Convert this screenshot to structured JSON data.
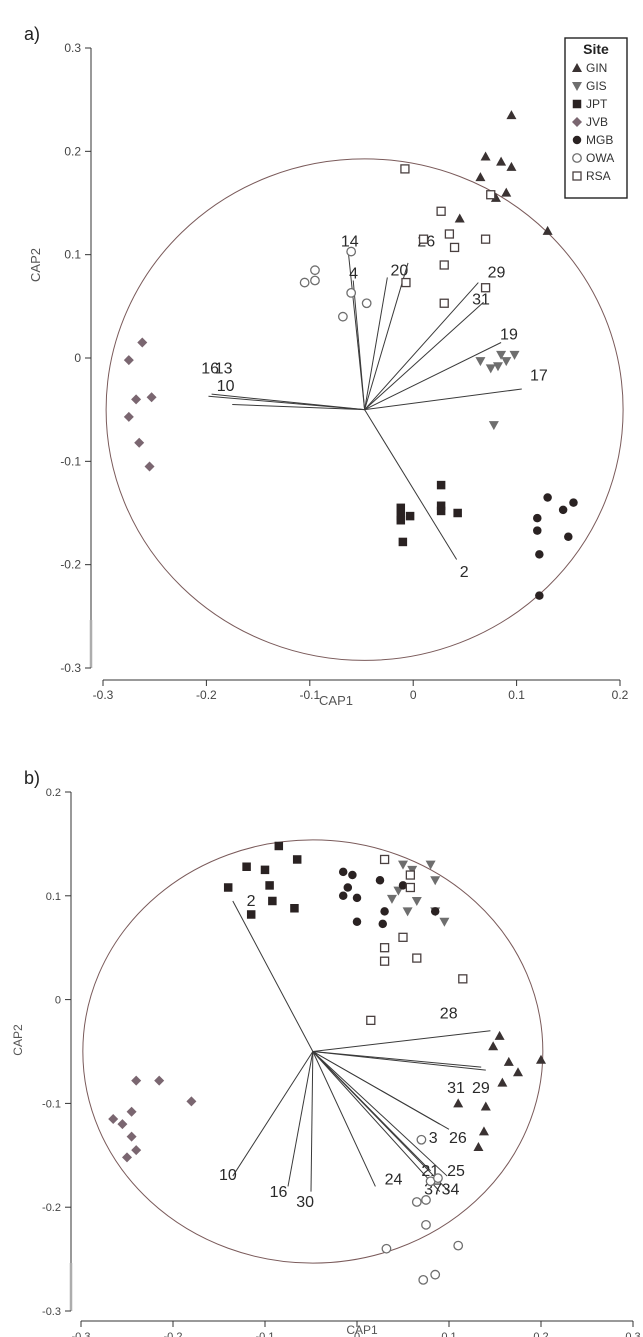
{
  "chart_data": [
    {
      "panel_label": "a)",
      "type": "scatter",
      "xlabel": "CAP1",
      "ylabel": "CAP2",
      "xlim": [
        -0.3,
        0.2
      ],
      "ylim": [
        -0.3,
        0.3
      ],
      "x_ticks": [
        "-0.3",
        "-0.2",
        "-0.1",
        "0",
        "0.1",
        "0.2"
      ],
      "y_ticks": [
        "0.3",
        "0.2",
        "0.1",
        "0",
        "-0.1",
        "-0.2",
        "-0.3"
      ],
      "grid": false,
      "legend": {
        "title": "Site",
        "placement": "top-right",
        "entries": [
          {
            "name": "GIN",
            "marker": "triangle-up",
            "color": "#3a3232"
          },
          {
            "name": "GIS",
            "marker": "triangle-down",
            "color": "#6e6e6e"
          },
          {
            "name": "JPT",
            "marker": "square",
            "color": "#2a2222"
          },
          {
            "name": "JVB",
            "marker": "diamond",
            "color": "#7a6670"
          },
          {
            "name": "MGB",
            "marker": "circle",
            "color": "#2a2222"
          },
          {
            "name": "OWA",
            "marker": "circle-open",
            "color": "#6e6e6e"
          },
          {
            "name": "RSA",
            "marker": "square-open",
            "color": "#4a4040"
          }
        ]
      },
      "series": [
        {
          "name": "GIN",
          "points": [
            [
              0.095,
              0.235
            ],
            [
              0.07,
              0.195
            ],
            [
              0.085,
              0.19
            ],
            [
              0.095,
              0.185
            ],
            [
              0.065,
              0.175
            ],
            [
              0.045,
              0.135
            ],
            [
              0.09,
              0.16
            ],
            [
              0.13,
              0.123
            ],
            [
              0.08,
              0.155
            ]
          ]
        },
        {
          "name": "GIS",
          "points": [
            [
              0.065,
              -0.003
            ],
            [
              0.085,
              0.003
            ],
            [
              0.09,
              -0.003
            ],
            [
              0.098,
              0.003
            ],
            [
              0.082,
              -0.008
            ],
            [
              0.075,
              -0.01
            ],
            [
              0.078,
              -0.065
            ]
          ]
        },
        {
          "name": "JPT",
          "points": [
            [
              -0.012,
              -0.145
            ],
            [
              -0.012,
              -0.153
            ],
            [
              -0.012,
              -0.157
            ],
            [
              -0.003,
              -0.153
            ],
            [
              0.027,
              -0.123
            ],
            [
              0.027,
              -0.143
            ],
            [
              0.027,
              -0.148
            ],
            [
              0.043,
              -0.15
            ],
            [
              -0.01,
              -0.178
            ]
          ]
        },
        {
          "name": "JVB",
          "points": [
            [
              -0.275,
              -0.002
            ],
            [
              -0.262,
              0.015
            ],
            [
              -0.268,
              -0.04
            ],
            [
              -0.253,
              -0.038
            ],
            [
              -0.275,
              -0.057
            ],
            [
              -0.265,
              -0.082
            ],
            [
              -0.255,
              -0.105
            ]
          ]
        },
        {
          "name": "MGB",
          "points": [
            [
              0.12,
              -0.155
            ],
            [
              0.13,
              -0.135
            ],
            [
              0.155,
              -0.14
            ],
            [
              0.145,
              -0.147
            ],
            [
              0.12,
              -0.167
            ],
            [
              0.15,
              -0.173
            ],
            [
              0.122,
              -0.19
            ],
            [
              0.122,
              -0.23
            ]
          ]
        },
        {
          "name": "OWA",
          "points": [
            [
              -0.06,
              0.103
            ],
            [
              -0.105,
              0.073
            ],
            [
              -0.095,
              0.075
            ],
            [
              -0.095,
              0.085
            ],
            [
              -0.06,
              0.063
            ],
            [
              -0.068,
              0.04
            ],
            [
              -0.045,
              0.053
            ]
          ]
        },
        {
          "name": "RSA",
          "points": [
            [
              -0.008,
              0.183
            ],
            [
              0.027,
              0.142
            ],
            [
              0.01,
              0.115
            ],
            [
              0.035,
              0.12
            ],
            [
              0.04,
              0.107
            ],
            [
              0.07,
              0.115
            ],
            [
              -0.007,
              0.073
            ],
            [
              0.03,
              0.09
            ],
            [
              0.03,
              0.053
            ],
            [
              0.07,
              0.068
            ],
            [
              0.075,
              0.158
            ]
          ]
        }
      ],
      "vectors": {
        "origin": [
          -0.047,
          -0.05
        ],
        "unit": "CAP",
        "items": [
          {
            "label": "14",
            "tip": [
              -0.063,
              0.105
            ],
            "label_at": [
              -0.07,
              0.108
            ]
          },
          {
            "label": "4",
            "tip": [
              -0.058,
              0.075
            ],
            "label_at": [
              -0.062,
              0.077
            ]
          },
          {
            "label": "20",
            "tip": [
              -0.025,
              0.078
            ],
            "label_at": [
              -0.022,
              0.08
            ]
          },
          {
            "label": "26",
            "tip": [
              -0.005,
              0.092
            ],
            "label_at": [
              0.004,
              0.108
            ]
          },
          {
            "label": "29",
            "tip": [
              0.063,
              0.073
            ],
            "label_at": [
              0.072,
              0.078
            ]
          },
          {
            "label": "31",
            "tip": [
              0.068,
              0.054
            ],
            "label_at": [
              0.057,
              0.052
            ]
          },
          {
            "label": "19",
            "tip": [
              0.085,
              0.015
            ],
            "label_at": [
              0.084,
              0.018
            ]
          },
          {
            "label": "17",
            "tip": [
              0.105,
              -0.03
            ],
            "label_at": [
              0.113,
              -0.022
            ]
          },
          {
            "label": "13",
            "tip": [
              -0.195,
              -0.035
            ],
            "label_at": [
              -0.192,
              -0.015
            ]
          },
          {
            "label": "16",
            "tip": [
              -0.198,
              -0.037
            ],
            "label_at": [
              -0.205,
              -0.015
            ]
          },
          {
            "label": "10",
            "tip": [
              -0.175,
              -0.045
            ],
            "label_at": [
              -0.19,
              -0.032
            ]
          },
          {
            "label": "2",
            "tip": [
              0.042,
              -0.195
            ],
            "label_at": [
              0.045,
              -0.212
            ]
          }
        ]
      },
      "circle": {
        "center": [
          -0.047,
          -0.05
        ],
        "radius_x": 0.25
      }
    },
    {
      "panel_label": "b)",
      "type": "scatter",
      "xlabel": "CAP1",
      "ylabel": "CAP2",
      "xlim": [
        -0.3,
        0.3
      ],
      "ylim": [
        -0.3,
        0.2
      ],
      "x_ticks": [
        "-0.3",
        "-0.2",
        "-0.1",
        "0",
        "0.1",
        "0.2",
        "0.3"
      ],
      "y_ticks": [
        "0.2",
        "0.1",
        "0",
        "-0.1",
        "-0.2",
        "-0.3"
      ],
      "grid": false,
      "series": [
        {
          "name": "GIN",
          "points": [
            [
              0.155,
              -0.035
            ],
            [
              0.148,
              -0.045
            ],
            [
              0.165,
              -0.06
            ],
            [
              0.175,
              -0.07
            ],
            [
              0.2,
              -0.058
            ],
            [
              0.158,
              -0.08
            ],
            [
              0.11,
              -0.1
            ],
            [
              0.14,
              -0.103
            ],
            [
              0.138,
              -0.127
            ],
            [
              0.132,
              -0.142
            ]
          ]
        },
        {
          "name": "GIS",
          "points": [
            [
              0.05,
              0.13
            ],
            [
              0.06,
              0.125
            ],
            [
              0.08,
              0.13
            ],
            [
              0.085,
              0.115
            ],
            [
              0.045,
              0.105
            ],
            [
              0.065,
              0.095
            ],
            [
              0.038,
              0.097
            ],
            [
              0.055,
              0.085
            ],
            [
              0.085,
              0.085
            ],
            [
              0.095,
              0.075
            ]
          ]
        },
        {
          "name": "JPT",
          "points": [
            [
              -0.14,
              0.108
            ],
            [
              -0.12,
              0.128
            ],
            [
              -0.1,
              0.125
            ],
            [
              -0.085,
              0.148
            ],
            [
              -0.065,
              0.135
            ],
            [
              -0.095,
              0.11
            ],
            [
              -0.092,
              0.095
            ],
            [
              -0.115,
              0.082
            ],
            [
              -0.068,
              0.088
            ]
          ]
        },
        {
          "name": "JVB",
          "points": [
            [
              -0.265,
              -0.115
            ],
            [
              -0.255,
              -0.12
            ],
            [
              -0.245,
              -0.108
            ],
            [
              -0.24,
              -0.078
            ],
            [
              -0.215,
              -0.078
            ],
            [
              -0.18,
              -0.098
            ],
            [
              -0.245,
              -0.132
            ],
            [
              -0.24,
              -0.145
            ],
            [
              -0.25,
              -0.152
            ]
          ]
        },
        {
          "name": "MGB",
          "points": [
            [
              -0.015,
              0.123
            ],
            [
              -0.005,
              0.12
            ],
            [
              -0.01,
              0.108
            ],
            [
              0.0,
              0.098
            ],
            [
              -0.015,
              0.1
            ],
            [
              0.025,
              0.115
            ],
            [
              0.03,
              0.085
            ],
            [
              0.0,
              0.075
            ],
            [
              0.028,
              0.073
            ],
            [
              0.085,
              0.085
            ],
            [
              0.05,
              0.11
            ]
          ]
        },
        {
          "name": "OWA",
          "points": [
            [
              0.07,
              -0.135
            ],
            [
              0.08,
              -0.175
            ],
            [
              0.075,
              -0.193
            ],
            [
              0.065,
              -0.195
            ],
            [
              0.088,
              -0.172
            ],
            [
              0.032,
              -0.24
            ],
            [
              0.075,
              -0.217
            ],
            [
              0.11,
              -0.237
            ],
            [
              0.085,
              -0.265
            ],
            [
              0.072,
              -0.27
            ]
          ]
        },
        {
          "name": "RSA",
          "points": [
            [
              0.03,
              0.135
            ],
            [
              0.058,
              0.108
            ],
            [
              0.05,
              0.06
            ],
            [
              0.03,
              0.05
            ],
            [
              0.03,
              0.037
            ],
            [
              0.065,
              0.04
            ],
            [
              0.115,
              0.02
            ],
            [
              0.015,
              -0.02
            ],
            [
              0.058,
              0.12
            ]
          ]
        }
      ],
      "vectors": {
        "origin": [
          -0.048,
          -0.05
        ],
        "unit": "CAP",
        "items": [
          {
            "label": "2",
            "tip": [
              -0.135,
              0.095
            ],
            "label_at": [
              -0.12,
              0.09
            ]
          },
          {
            "label": "28",
            "tip": [
              0.145,
              -0.03
            ],
            "label_at": [
              0.09,
              -0.018
            ]
          },
          {
            "label": "31",
            "tip": [
              0.135,
              -0.065
            ],
            "label_at": [
              0.098,
              -0.09
            ]
          },
          {
            "label": "29",
            "tip": [
              0.14,
              -0.068
            ],
            "label_at": [
              0.125,
              -0.09
            ]
          },
          {
            "label": "3",
            "tip": [
              0.09,
              -0.12
            ],
            "label_at": [
              0.078,
              -0.138
            ]
          },
          {
            "label": "26",
            "tip": [
              0.1,
              -0.125
            ],
            "label_at": [
              0.1,
              -0.138
            ]
          },
          {
            "label": "21",
            "tip": [
              0.08,
              -0.165
            ],
            "label_at": [
              0.07,
              -0.17
            ]
          },
          {
            "label": "25",
            "tip": [
              0.098,
              -0.17
            ],
            "label_at": [
              0.098,
              -0.17
            ]
          },
          {
            "label": "37",
            "tip": [
              0.09,
              -0.185
            ],
            "label_at": [
              0.073,
              -0.188
            ]
          },
          {
            "label": "34",
            "tip": [
              0.1,
              -0.185
            ],
            "label_at": [
              0.092,
              -0.188
            ]
          },
          {
            "label": "24",
            "tip": [
              0.02,
              -0.18
            ],
            "label_at": [
              0.03,
              -0.178
            ]
          },
          {
            "label": "30",
            "tip": [
              -0.05,
              -0.185
            ],
            "label_at": [
              -0.066,
              -0.2
            ]
          },
          {
            "label": "16",
            "tip": [
              -0.075,
              -0.18
            ],
            "label_at": [
              -0.095,
              -0.19
            ]
          },
          {
            "label": "10",
            "tip": [
              -0.135,
              -0.17
            ],
            "label_at": [
              -0.15,
              -0.174
            ]
          }
        ]
      },
      "circle": {
        "center": [
          -0.048,
          -0.05
        ],
        "radius_x": 0.25
      }
    }
  ]
}
